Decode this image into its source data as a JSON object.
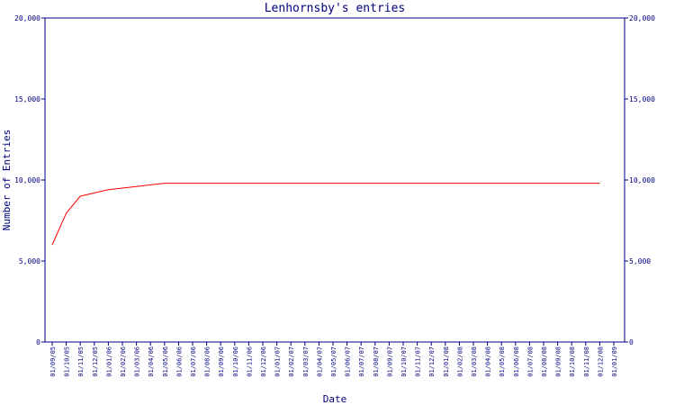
{
  "chart_data": {
    "type": "line",
    "title": "Lenhornsby's entries",
    "xlabel": "Date",
    "ylabel": "Number of Entries",
    "ylim": [
      0,
      20000
    ],
    "y_ticks": [
      "0",
      "5,000",
      "10,000",
      "15,000",
      "20,000"
    ],
    "y_tick_values": [
      0,
      5000,
      10000,
      15000,
      20000
    ],
    "grid": false,
    "colors": {
      "line": "#ff0000",
      "axis": "#000080",
      "text": "#000080"
    },
    "x": [
      "01/09/05",
      "01/10/05",
      "01/11/05",
      "01/12/05",
      "01/01/06",
      "01/02/06",
      "01/03/06",
      "01/04/06",
      "01/05/06",
      "01/06/06",
      "01/07/06",
      "01/08/06",
      "01/09/06",
      "01/10/06",
      "01/11/06",
      "01/12/06",
      "01/01/07",
      "01/02/07",
      "01/03/07",
      "01/04/07",
      "01/05/07",
      "01/06/07",
      "01/07/07",
      "01/08/07",
      "01/09/07",
      "01/10/07",
      "01/11/07",
      "01/12/07",
      "01/01/08",
      "01/02/08",
      "01/03/08",
      "01/04/08",
      "01/05/08",
      "01/06/08",
      "01/07/08",
      "01/08/08",
      "01/09/08",
      "01/10/08",
      "01/11/08",
      "01/12/08",
      "01/01/09"
    ],
    "series": [
      {
        "values": [
          6000,
          7950,
          9000,
          9200,
          9400,
          9500,
          9600,
          9700,
          9800,
          9800,
          9800,
          9800,
          9800,
          9800,
          9800,
          9800,
          9800,
          9800,
          9800,
          9800,
          9800,
          9800,
          9800,
          9800,
          9800,
          9800,
          9800,
          9800,
          9800,
          9800,
          9800,
          9800,
          9800,
          9800,
          9800,
          9800,
          9800,
          9800,
          9800,
          9800,
          null
        ]
      }
    ]
  }
}
